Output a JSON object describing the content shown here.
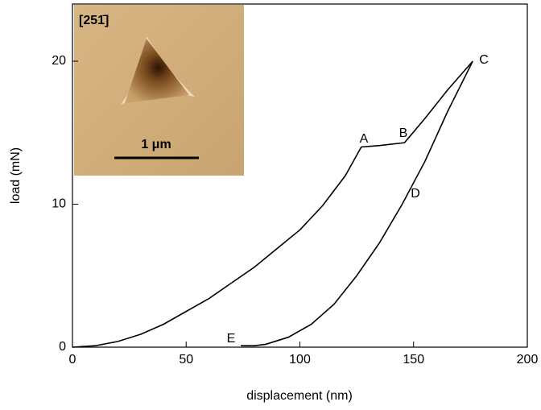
{
  "chart_data": {
    "type": "line",
    "x_label": "displacement (nm)",
    "y_label": "load (mN)",
    "xlim": [
      0,
      200
    ],
    "ylim": [
      0,
      24
    ],
    "xticks": [
      0,
      50,
      100,
      150,
      200
    ],
    "yticks": [
      0,
      10,
      20
    ],
    "series": [
      {
        "color": "#000000",
        "x": [
          0,
          10,
          20,
          30,
          40,
          50,
          60,
          70,
          80,
          90,
          100,
          110,
          120,
          127,
          135,
          146,
          155,
          165,
          176
        ],
        "values": [
          0,
          0.1,
          0.4,
          0.9,
          1.6,
          2.5,
          3.4,
          4.5,
          5.6,
          6.9,
          8.2,
          9.9,
          12.0,
          14.0,
          14.1,
          14.3,
          16.0,
          18.0,
          20.0
        ]
      },
      {
        "color": "#000000",
        "x": [
          176,
          165,
          155,
          145,
          135,
          125,
          115,
          105,
          95,
          85,
          80,
          74
        ],
        "values": [
          20.0,
          16.5,
          13.0,
          10.0,
          7.3,
          5.0,
          3.0,
          1.6,
          0.7,
          0.2,
          0.1,
          0.1
        ]
      }
    ],
    "annotations": [
      "A",
      "B",
      "C",
      "D",
      "E"
    ],
    "inset": {
      "label": "[251̄]",
      "scale_bar": "1 μm"
    }
  }
}
